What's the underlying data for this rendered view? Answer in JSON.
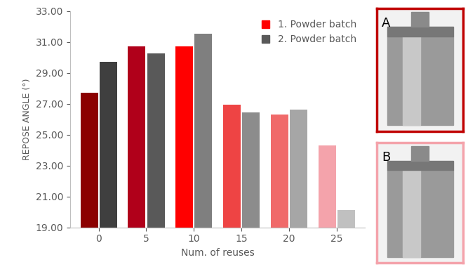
{
  "chart_data": {
    "type": "bar",
    "x_label": "Num. of reuses",
    "y_label": "REPOSE ANGLE (°)",
    "categories": [
      "0",
      "5",
      "10",
      "15",
      "20",
      "25"
    ],
    "series": [
      {
        "name": "1. Powder batch",
        "color": "#ff0000",
        "colors": [
          "#8b0000",
          "#b0001a",
          "#ff0000",
          "#ee4444",
          "#f06a6a",
          "#f4a3ab"
        ],
        "values": [
          27.7,
          30.7,
          30.7,
          26.95,
          26.3,
          24.3
        ]
      },
      {
        "name": "2. Powder batch",
        "color": "#595959",
        "colors": [
          "#3f3f3f",
          "#595959",
          "#7f7f7f",
          "#8c8c8c",
          "#a6a6a6",
          "#c0c0c0"
        ],
        "values": [
          29.7,
          30.25,
          31.55,
          26.45,
          26.6,
          20.1
        ]
      }
    ],
    "ylim": [
      19,
      33
    ],
    "yticks": [
      {
        "value": 19,
        "label": "19.00"
      },
      {
        "value": 21,
        "label": "21.00"
      },
      {
        "value": 23,
        "label": "23.00"
      },
      {
        "value": 25,
        "label": "25.00"
      },
      {
        "value": 27,
        "label": "27.00"
      },
      {
        "value": 29,
        "label": "29.00"
      },
      {
        "value": 31,
        "label": "31.00"
      },
      {
        "value": 33,
        "label": "33.00"
      }
    ],
    "grid": false,
    "legend": "upper right",
    "annotations": [
      "A",
      "B"
    ]
  }
}
